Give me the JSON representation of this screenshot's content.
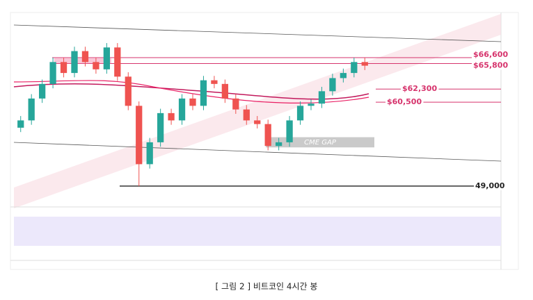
{
  "chart_data": {
    "type": "candlestick",
    "open": [
      57000,
      58000,
      61000,
      63000,
      66000,
      64500,
      67500,
      66000,
      65000,
      68000,
      64000,
      60000,
      52000,
      55000,
      59000,
      58000,
      61000,
      60000,
      63500,
      63000,
      61000,
      59500,
      58000,
      57500,
      54500,
      55000,
      58000,
      60000,
      60300,
      62000,
      63800,
      64500,
      66000
    ],
    "high": [
      58600,
      61600,
      63600,
      66600,
      66600,
      68100,
      68100,
      66600,
      68600,
      68600,
      64600,
      60600,
      55600,
      59600,
      59600,
      61600,
      61600,
      64100,
      64100,
      63600,
      61600,
      60100,
      58600,
      58100,
      55600,
      58600,
      60600,
      60900,
      62600,
      64400,
      65100,
      66600,
      66600
    ],
    "low": [
      56400,
      57400,
      60400,
      62400,
      63900,
      63900,
      65400,
      64400,
      64400,
      63400,
      59400,
      49000,
      51400,
      54400,
      57400,
      57400,
      59400,
      59400,
      62400,
      60400,
      58900,
      57400,
      56900,
      53900,
      53900,
      54400,
      57400,
      59400,
      59700,
      61400,
      63200,
      63900,
      64900
    ],
    "close": [
      58000,
      61000,
      63000,
      66000,
      64500,
      67500,
      66000,
      65000,
      68000,
      64000,
      60000,
      52000,
      55000,
      59000,
      58000,
      61000,
      60000,
      63500,
      63000,
      61000,
      59500,
      58000,
      57500,
      54500,
      55000,
      58000,
      60000,
      60300,
      62000,
      63800,
      64500,
      66000,
      65500
    ],
    "ylim": [
      46900,
      72600
    ],
    "levels": [
      {
        "label": "$66,600",
        "value": 66600,
        "color": "#d6336c"
      },
      {
        "label": "$65,800",
        "value": 65800,
        "color": "#d6336c"
      },
      {
        "label": "$62,300",
        "value": 62300,
        "color": "#d6336c"
      },
      {
        "label": "$60,500",
        "value": 60500,
        "color": "#d6336c"
      },
      {
        "label": "49,000",
        "value": 49000,
        "color": "#222222"
      }
    ],
    "gap": {
      "label": "CME GAP",
      "range": [
        54300,
        55700
      ]
    },
    "up_color": "#26a69a",
    "down_color": "#ef5350",
    "caption": "[ 그림 2 ] 비트코인 4시간 봉"
  }
}
